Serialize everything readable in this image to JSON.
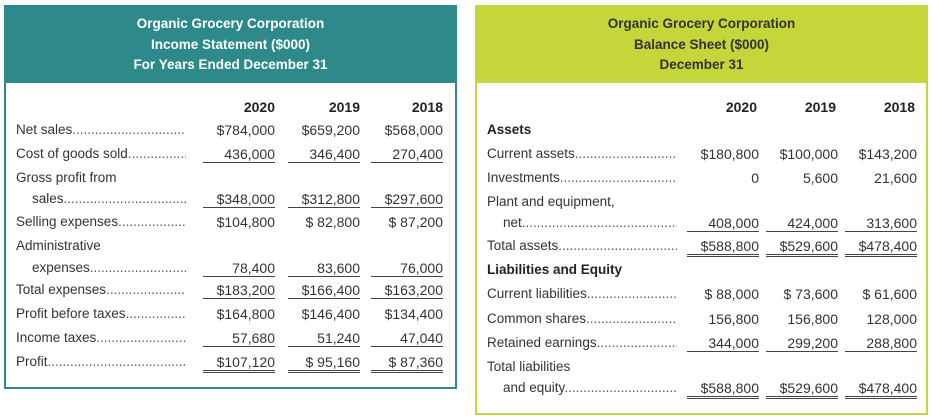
{
  "income_statement": {
    "title": [
      "Organic Grocery Corporation",
      "Income Statement ($000)",
      "For Years Ended December 31"
    ],
    "years": [
      "2020",
      "2019",
      "2018"
    ],
    "header_color": "#2e8a8a",
    "rows": [
      {
        "label": "Net sales",
        "values": [
          "$784,000",
          "$659,200",
          "$568,000"
        ],
        "rule": "none"
      },
      {
        "label": "Cost of goods sold",
        "values": [
          "436,000",
          "346,400",
          "270,400"
        ],
        "rule": "single"
      },
      {
        "label": "Gross profit from",
        "values": [
          "",
          "",
          ""
        ],
        "rule": "none",
        "nodots": true
      },
      {
        "label": "sales",
        "indent": true,
        "values": [
          "$348,000",
          "$312,800",
          "$297,600"
        ],
        "rule": "single"
      },
      {
        "label": "Selling expenses",
        "values": [
          "$104,800",
          "$ 82,800",
          "$ 87,200"
        ],
        "rule": "none"
      },
      {
        "label": "Administrative",
        "values": [
          "",
          "",
          ""
        ],
        "rule": "none",
        "nodots": true
      },
      {
        "label": "expenses",
        "indent": true,
        "values": [
          "78,400",
          "83,600",
          "76,000"
        ],
        "rule": "single"
      },
      {
        "label": "Total expenses",
        "values": [
          "$183,200",
          "$166,400",
          "$163,200"
        ],
        "rule": "single"
      },
      {
        "label": "Profit before taxes",
        "values": [
          "$164,800",
          "$146,400",
          "$134,400"
        ],
        "rule": "none"
      },
      {
        "label": "Income taxes",
        "values": [
          "57,680",
          "51,240",
          "47,040"
        ],
        "rule": "single"
      },
      {
        "label": "Profit",
        "values": [
          "$107,120",
          "$ 95,160",
          "$ 87,360"
        ],
        "rule": "double"
      }
    ]
  },
  "balance_sheet": {
    "title": [
      "Organic Grocery Corporation",
      "Balance Sheet ($000)",
      "December 31"
    ],
    "years": [
      "2020",
      "2019",
      "2018"
    ],
    "header_color": "#c5d63a",
    "rows": [
      {
        "label": "Assets",
        "bold": true,
        "values": [
          "",
          "",
          ""
        ],
        "rule": "none",
        "nodots": true
      },
      {
        "label": "Current assets",
        "values": [
          "$180,800",
          "$100,000",
          "$143,200"
        ],
        "rule": "none"
      },
      {
        "label": "Investments",
        "values": [
          "0",
          "5,600",
          "21,600"
        ],
        "rule": "none"
      },
      {
        "label": "Plant and equipment,",
        "values": [
          "",
          "",
          ""
        ],
        "rule": "none",
        "nodots": true
      },
      {
        "label": "net",
        "indent": true,
        "values": [
          "408,000",
          "424,000",
          "313,600"
        ],
        "rule": "single"
      },
      {
        "label": "Total assets",
        "values": [
          "$588,800",
          "$529,600",
          "$478,400"
        ],
        "rule": "double"
      },
      {
        "label": "Liabilities and Equity",
        "bold": true,
        "values": [
          "",
          "",
          ""
        ],
        "rule": "none",
        "nodots": true
      },
      {
        "label": "Current liabilities",
        "values": [
          "$ 88,000",
          "$ 73,600",
          "$ 61,600"
        ],
        "rule": "none"
      },
      {
        "label": "Common shares",
        "values": [
          "156,800",
          "156,800",
          "128,000"
        ],
        "rule": "none"
      },
      {
        "label": "Retained earnings",
        "values": [
          "344,000",
          "299,200",
          "288,800"
        ],
        "rule": "single"
      },
      {
        "label": "Total liabilities",
        "values": [
          "",
          "",
          ""
        ],
        "rule": "none",
        "nodots": true
      },
      {
        "label": "and equity",
        "indent": true,
        "values": [
          "$588,800",
          "$529,600",
          "$478,400"
        ],
        "rule": "double"
      }
    ]
  }
}
